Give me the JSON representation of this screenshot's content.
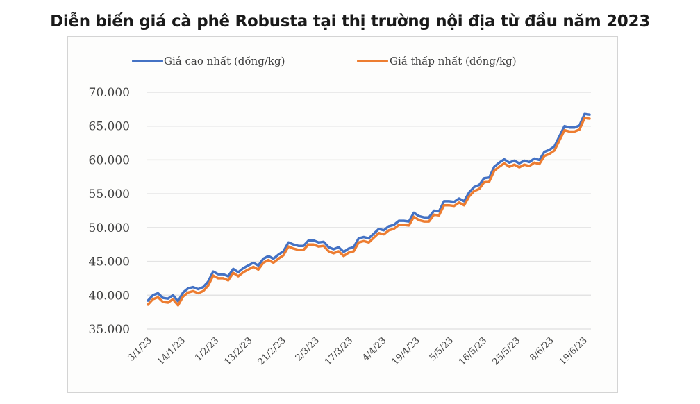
{
  "title": "Diễn biến giá cà phê Robusta tại thị trường nội địa từ đầu năm 2023",
  "legend": [
    {
      "label": "Giá cao nhất (đồng/kg)",
      "color": "#4472c4"
    },
    {
      "label": "Giá thấp nhất (đồng/kg)",
      "color": "#ed7d31"
    }
  ],
  "y_ticks": [
    "70.000",
    "65.000",
    "60.000",
    "55.000",
    "50.000",
    "45.000",
    "40.000",
    "35.000"
  ],
  "x_ticks": [
    "3/1/23",
    "14/1/23",
    "1/2/23",
    "13/2/23",
    "21/2/23",
    "2/3/23",
    "17/3/23",
    "4/4/23",
    "19/4/23",
    "5/5/23",
    "16/5/23",
    "25/5/23",
    "8/6/23",
    "19/6/23"
  ],
  "chart_data": {
    "type": "line",
    "title": "Diễn biến giá cà phê Robusta tại thị trường nội địa từ đầu năm 2023",
    "xlabel": "",
    "ylabel": "",
    "ylim": [
      35000,
      70000
    ],
    "grid": true,
    "legend_position": "top",
    "x_tick_labels": [
      "3/1/23",
      "14/1/23",
      "1/2/23",
      "13/2/23",
      "21/2/23",
      "2/3/23",
      "17/3/23",
      "4/4/23",
      "19/4/23",
      "5/5/23",
      "16/5/23",
      "25/5/23",
      "8/6/23",
      "19/6/23"
    ],
    "series": [
      {
        "name": "Giá cao nhất (đồng/kg)",
        "color": "#4472c4",
        "values": [
          39200,
          40000,
          40300,
          39600,
          39500,
          40000,
          39100,
          40400,
          41000,
          41200,
          40900,
          41200,
          42000,
          43500,
          43100,
          43100,
          42800,
          43900,
          43400,
          44000,
          44400,
          44800,
          44400,
          45400,
          45800,
          45400,
          46000,
          46500,
          47800,
          47500,
          47300,
          47300,
          48100,
          48100,
          47800,
          47900,
          47100,
          46800,
          47100,
          46400,
          46900,
          47100,
          48400,
          48600,
          48400,
          49100,
          49800,
          49600,
          50200,
          50400,
          51000,
          51000,
          50900,
          52200,
          51700,
          51500,
          51500,
          52500,
          52400,
          53900,
          53900,
          53800,
          54300,
          53900,
          55200,
          56000,
          56300,
          57300,
          57400,
          59000,
          59600,
          60100,
          59600,
          59900,
          59500,
          59900,
          59700,
          60200,
          60000,
          61200,
          61500,
          62000,
          63500,
          65000,
          64800,
          64800,
          65100,
          66800,
          66700
        ]
      },
      {
        "name": "Giá thấp nhất (đồng/kg)",
        "color": "#ed7d31",
        "values": [
          38600,
          39400,
          39700,
          39000,
          38900,
          39400,
          38500,
          39800,
          40400,
          40600,
          40300,
          40600,
          41400,
          42900,
          42500,
          42500,
          42200,
          43300,
          42800,
          43400,
          43800,
          44200,
          43800,
          44800,
          45200,
          44800,
          45400,
          45900,
          47200,
          46900,
          46700,
          46700,
          47500,
          47500,
          47200,
          47300,
          46500,
          46200,
          46500,
          45800,
          46300,
          46500,
          47800,
          48000,
          47800,
          48500,
          49200,
          49000,
          49600,
          49800,
          50400,
          50400,
          50300,
          51600,
          51100,
          50900,
          50900,
          51900,
          51800,
          53300,
          53300,
          53200,
          53700,
          53300,
          54600,
          55400,
          55700,
          56700,
          56800,
          58400,
          59000,
          59500,
          59000,
          59300,
          58900,
          59300,
          59100,
          59600,
          59400,
          60600,
          60900,
          61400,
          62900,
          64400,
          64200,
          64200,
          64500,
          66200,
          66100
        ]
      }
    ]
  }
}
